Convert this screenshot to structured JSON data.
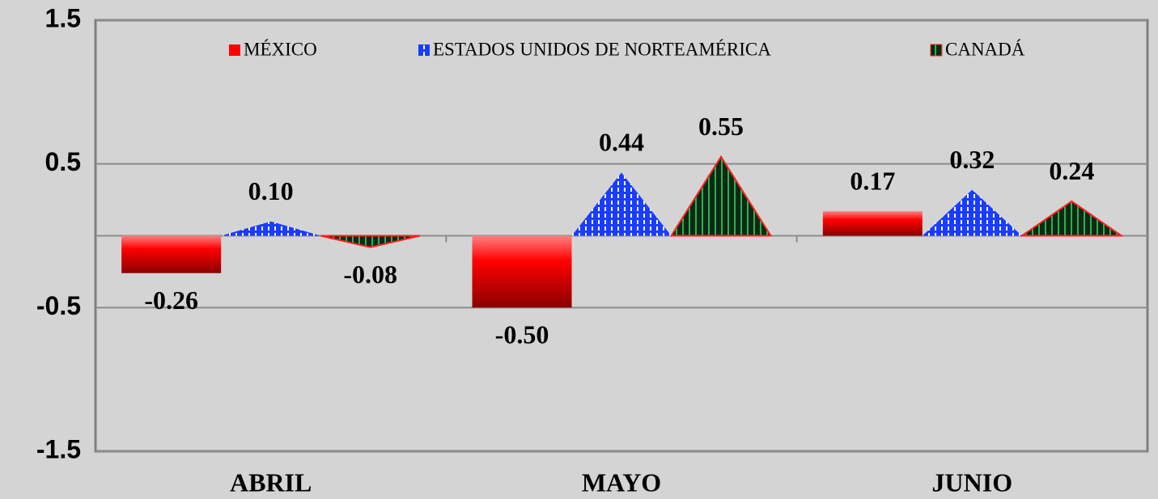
{
  "chart_data": {
    "type": "bar",
    "categories": [
      "ABRIL",
      "MAYO",
      "JUNIO"
    ],
    "series": [
      {
        "name": "MÉXICO",
        "color": "#ff0000",
        "shape": "bar",
        "values": [
          -0.26,
          -0.5,
          0.17
        ],
        "value_labels": [
          "-0.26",
          "-0.50",
          "0.17"
        ]
      },
      {
        "name": "ESTADOS UNIDOS DE NORTEAMÉRICA",
        "color": "#1a3cff",
        "shape": "triangle",
        "values": [
          0.1,
          0.44,
          0.32
        ],
        "value_labels": [
          "0.10",
          "0.44",
          "0.32"
        ]
      },
      {
        "name": "CANADÁ",
        "color": "#0b2a14",
        "shape": "triangle",
        "values": [
          -0.08,
          0.55,
          0.24
        ],
        "value_labels": [
          "-0.08",
          "0.55",
          "0.24"
        ]
      }
    ],
    "ylim": [
      -1.5,
      1.5
    ],
    "yticks": [
      -1.5,
      -0.5,
      0.5,
      1.5
    ],
    "grid": true,
    "legend": "top"
  }
}
